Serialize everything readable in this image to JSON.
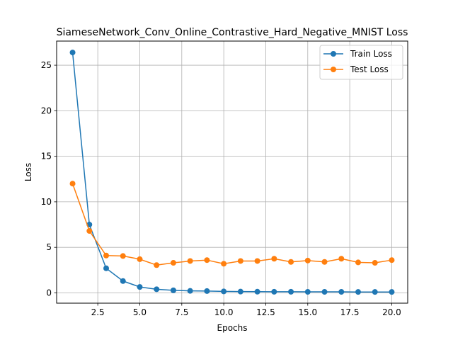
{
  "chart_data": {
    "type": "line",
    "title": "SiameseNetwork_Conv_Online_Contrastive_Hard_Negative_MNIST Loss",
    "xlabel": "Epochs",
    "ylabel": "Loss",
    "xlim": [
      0.05,
      20.95
    ],
    "ylim": [
      -1.13,
      27.65
    ],
    "xticks": [
      2.5,
      5.0,
      7.5,
      10.0,
      12.5,
      15.0,
      17.5,
      20.0
    ],
    "xtick_labels": [
      "2.5",
      "5.0",
      "7.5",
      "10.0",
      "12.5",
      "15.0",
      "17.5",
      "20.0"
    ],
    "yticks": [
      0,
      5,
      10,
      15,
      20,
      25
    ],
    "ytick_labels": [
      "0",
      "5",
      "10",
      "15",
      "20",
      "25"
    ],
    "grid": true,
    "legend_position": "top-right",
    "x": [
      1,
      2,
      3,
      4,
      5,
      6,
      7,
      8,
      9,
      10,
      11,
      12,
      13,
      14,
      15,
      16,
      17,
      18,
      19,
      20
    ],
    "series": [
      {
        "name": "Train Loss",
        "color": "#1f77b4",
        "marker": "circle",
        "values": [
          26.4,
          7.5,
          2.7,
          1.3,
          0.65,
          0.4,
          0.28,
          0.22,
          0.2,
          0.16,
          0.14,
          0.13,
          0.12,
          0.12,
          0.11,
          0.11,
          0.11,
          0.1,
          0.1,
          0.1
        ]
      },
      {
        "name": "Test Loss",
        "color": "#ff7f0e",
        "marker": "circle",
        "values": [
          12.0,
          6.8,
          4.1,
          4.05,
          3.7,
          3.05,
          3.3,
          3.5,
          3.6,
          3.2,
          3.5,
          3.5,
          3.75,
          3.4,
          3.55,
          3.4,
          3.75,
          3.35,
          3.3,
          3.6
        ]
      }
    ]
  }
}
